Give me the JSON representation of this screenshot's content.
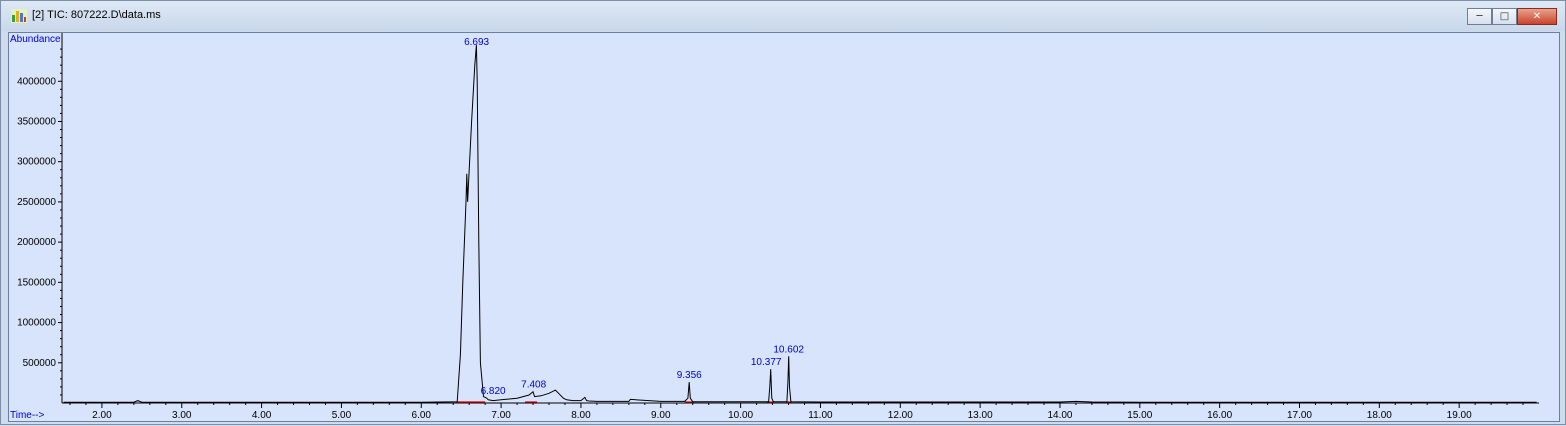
{
  "window": {
    "title": "[2] TIC: 807222.D\\data.ms",
    "icon": "chromatogram-app-icon",
    "buttons": {
      "minimize": "minimize-icon",
      "maximize": "maximize-icon",
      "close": "close-icon"
    }
  },
  "chart_data": {
    "type": "line",
    "ylabel": "Abundance",
    "xlabel": "Time-->",
    "xlim": [
      1.5,
      20.0
    ],
    "ylim": [
      0,
      4600000
    ],
    "x_ticks": [
      "2.00",
      "3.00",
      "4.00",
      "5.00",
      "6.00",
      "7.00",
      "8.00",
      "9.00",
      "10.00",
      "11.00",
      "12.00",
      "13.00",
      "14.00",
      "15.00",
      "16.00",
      "17.00",
      "18.00",
      "19.00"
    ],
    "y_ticks": [
      "500000",
      "1000000",
      "1500000",
      "2000000",
      "2500000",
      "3000000",
      "3500000",
      "4000000"
    ],
    "peak_labels": [
      "6.693",
      "6.820",
      "7.408",
      "9.356",
      "10.377",
      "10.602"
    ],
    "series": [
      {
        "x": [
          1.52,
          2.4,
          2.45,
          2.5,
          3.5,
          5.0,
          6.0,
          6.45,
          6.49,
          6.52,
          6.56,
          6.57,
          6.58,
          6.6,
          6.63,
          6.65,
          6.67,
          6.69,
          6.7,
          6.72,
          6.74,
          6.78,
          6.82,
          6.84,
          6.9,
          7.0,
          7.2,
          7.35,
          7.4,
          7.42,
          7.5,
          7.6,
          7.68,
          7.72,
          7.78,
          7.82,
          7.9,
          8.0,
          8.05,
          8.07,
          8.1,
          8.2,
          8.4,
          8.6,
          8.62,
          9.0,
          9.3,
          9.34,
          9.356,
          9.37,
          9.4,
          10.0,
          10.35,
          10.365,
          10.377,
          10.39,
          10.41,
          10.58,
          10.592,
          10.602,
          10.612,
          10.63,
          11.0,
          12.0,
          13.0,
          14.0,
          14.2,
          14.4,
          15.0,
          16.0,
          17.0,
          18.0,
          19.0,
          19.97
        ],
        "y": [
          10000,
          10000,
          30000,
          10000,
          10000,
          10000,
          10000,
          15000,
          600000,
          1500000,
          2500000,
          2850000,
          2500000,
          2900000,
          3500000,
          3850000,
          4200000,
          4450000,
          4000000,
          2000000,
          500000,
          80000,
          60000,
          40000,
          30000,
          40000,
          60000,
          100000,
          140000,
          80000,
          90000,
          120000,
          160000,
          120000,
          60000,
          40000,
          30000,
          30000,
          70000,
          30000,
          25000,
          20000,
          20000,
          20000,
          45000,
          20000,
          20000,
          60000,
          260000,
          60000,
          15000,
          15000,
          15000,
          200000,
          420000,
          60000,
          15000,
          15000,
          260000,
          580000,
          200000,
          15000,
          12000,
          12000,
          12000,
          12000,
          20000,
          12000,
          10000,
          10000,
          10000,
          10000,
          10000,
          10000
        ]
      }
    ]
  }
}
